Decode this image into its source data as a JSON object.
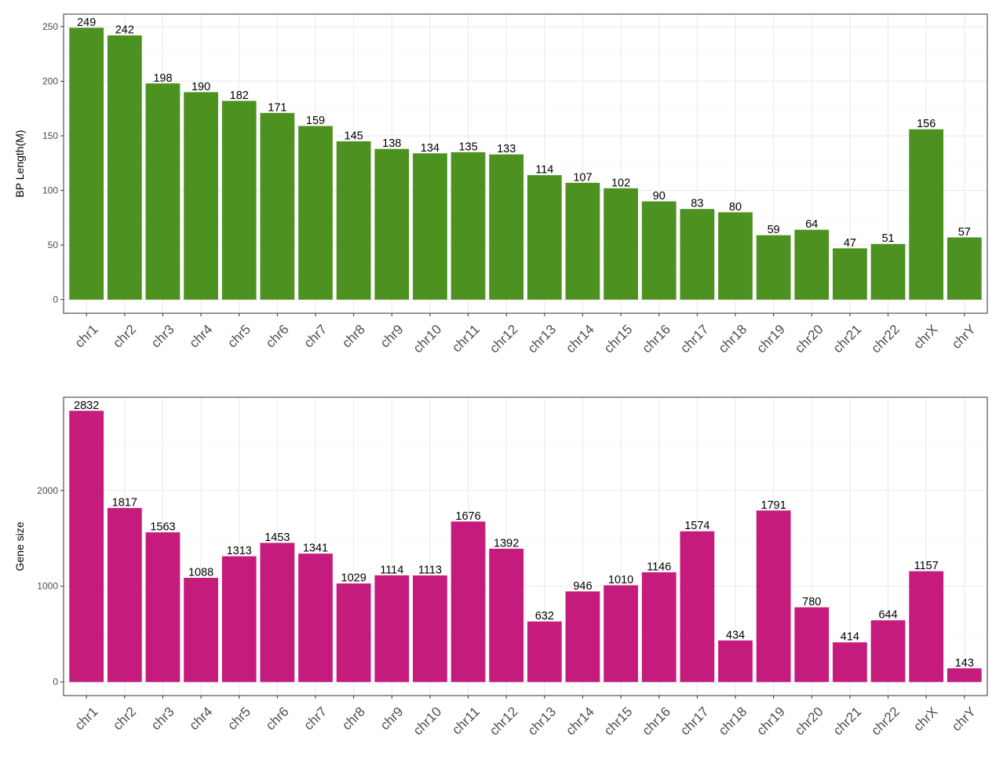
{
  "chart_data": [
    {
      "type": "bar",
      "categories": [
        "chr1",
        "chr2",
        "chr3",
        "chr4",
        "chr5",
        "chr6",
        "chr7",
        "chr8",
        "chr9",
        "chr10",
        "chr11",
        "chr12",
        "chr13",
        "chr14",
        "chr15",
        "chr16",
        "chr17",
        "chr18",
        "chr19",
        "chr20",
        "chr21",
        "chr22",
        "chrX",
        "chrY"
      ],
      "values": [
        249,
        242,
        198,
        190,
        182,
        171,
        159,
        145,
        138,
        134,
        135,
        133,
        114,
        107,
        102,
        90,
        83,
        80,
        59,
        64,
        47,
        51,
        156,
        57
      ],
      "ylabel": "BP Length(M)",
      "ylim": [
        -12.45,
        261.45
      ],
      "yticks": [
        0,
        50,
        100,
        150,
        200,
        250
      ],
      "bar_color": "#4D9221",
      "grid": true,
      "legend": "none"
    },
    {
      "type": "bar",
      "categories": [
        "chr1",
        "chr2",
        "chr3",
        "chr4",
        "chr5",
        "chr6",
        "chr7",
        "chr8",
        "chr9",
        "chr10",
        "chr11",
        "chr12",
        "chr13",
        "chr14",
        "chr15",
        "chr16",
        "chr17",
        "chr18",
        "chr19",
        "chr20",
        "chr21",
        "chr22",
        "chrX",
        "chrY"
      ],
      "values": [
        2832,
        1817,
        1563,
        1088,
        1313,
        1453,
        1341,
        1029,
        1114,
        1113,
        1676,
        1392,
        632,
        946,
        1010,
        1146,
        1574,
        434,
        1791,
        780,
        414,
        644,
        1157,
        143
      ],
      "ylabel": "Gene size",
      "ylim": [
        -141.6,
        2973.6
      ],
      "yticks": [
        0,
        1000,
        2000
      ],
      "bar_color": "#C51B7D",
      "grid": true,
      "legend": "none"
    }
  ]
}
